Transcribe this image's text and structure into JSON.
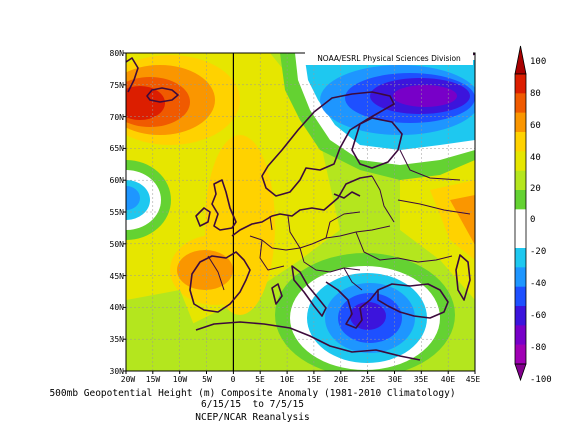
{
  "credit": "NOAA/ESRL Physical Sciences Division",
  "caption": {
    "line1": "500mb Geopotential Height (m) Composite Anomaly (1981-2010 Climatology)",
    "line2": "6/15/15  to 7/5/15",
    "line3": "NCEP/NCAR Reanalysis"
  },
  "lat_labels": [
    "80N",
    "75N",
    "70N",
    "65N",
    "60N",
    "55N",
    "50N",
    "45N",
    "40N",
    "35N",
    "30N"
  ],
  "lon_labels": [
    "20W",
    "15W",
    "10W",
    "5W",
    "0",
    "5E",
    "10E",
    "15E",
    "20E",
    "25E",
    "30E",
    "35E",
    "40E",
    "45E"
  ],
  "colorbar": {
    "labels": [
      "100",
      "80",
      "60",
      "40",
      "20",
      "0",
      "-20",
      "-40",
      "-60",
      "-80",
      "-100"
    ],
    "colors": [
      "#a80000",
      "#dc1e00",
      "#f05a00",
      "#fa9600",
      "#ffd200",
      "#e6e600",
      "#b4e61e",
      "#64d232",
      "#ffffff",
      "#ffffff",
      "#1ec8f0",
      "#1e96ff",
      "#1e50ff",
      "#3c14dc",
      "#7800c8",
      "#a000b4",
      "#82008c"
    ]
  },
  "map": {
    "lat_range": [
      30,
      80
    ],
    "lon_range": [
      -20,
      45
    ],
    "projection": "cylindrical equidistant",
    "field": "500mb geopotential height anomaly (m)",
    "features": [
      {
        "name": "ridge-iceland-greenland",
        "lon": -17,
        "lat": 71,
        "value": 90
      },
      {
        "name": "ridge-iberia-france",
        "lon": -5,
        "lat": 47,
        "value": 55
      },
      {
        "name": "ridge-central-europe",
        "lon": 5,
        "lat": 58,
        "value": 45
      },
      {
        "name": "ridge-east",
        "lon": 45,
        "lat": 55,
        "value": 60
      },
      {
        "name": "trough-barents",
        "lon": 32,
        "lat": 72,
        "value": -75
      },
      {
        "name": "trough-balkans-greece",
        "lon": 24,
        "lat": 39,
        "value": -60
      },
      {
        "name": "trough-west-atlantic",
        "lon": -20,
        "lat": 58,
        "value": -30
      }
    ]
  }
}
